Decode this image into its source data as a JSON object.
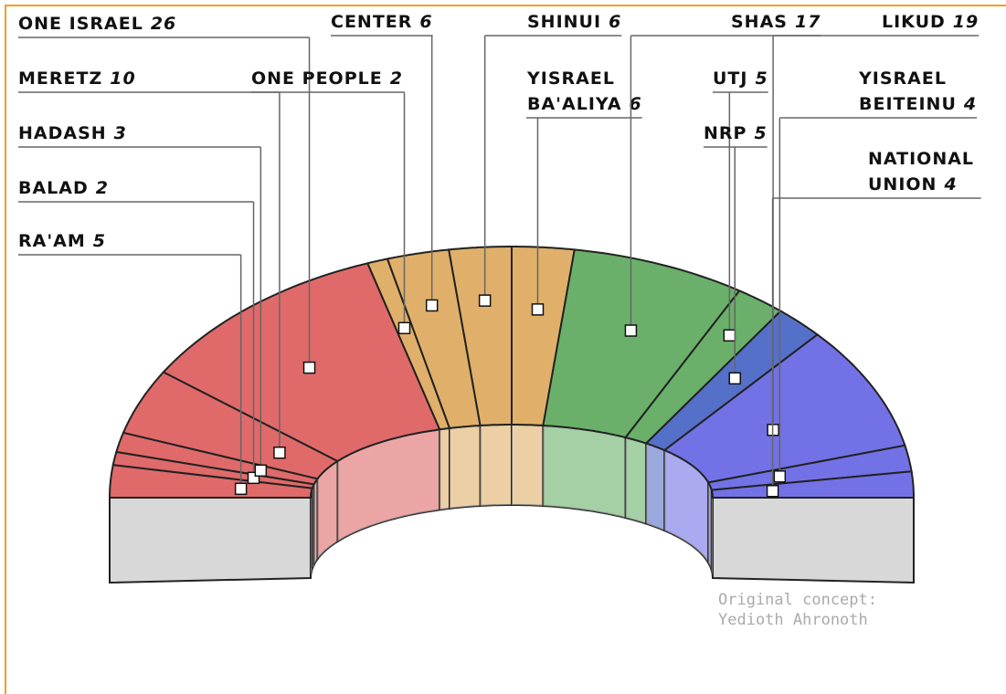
{
  "chart_data": {
    "type": "parliament",
    "categories": [
      "RA'AM",
      "BALAD",
      "HADASH",
      "MERETZ",
      "ONE ISRAEL",
      "ONE PEOPLE",
      "CENTER",
      "SHINUI",
      "YISRAEL BA'ALIYA",
      "SHAS",
      "UTJ",
      "NRP",
      "LIKUD",
      "YISRAEL BEITEINU",
      "NATIONAL UNION"
    ],
    "values": [
      5,
      2,
      3,
      10,
      26,
      2,
      6,
      6,
      6,
      17,
      5,
      5,
      19,
      4,
      4
    ],
    "colors": [
      "#e06a6a",
      "#e06a6a",
      "#e06a6a",
      "#e06a6a",
      "#e06a6a",
      "#e0b06a",
      "#e0b06a",
      "#e0b06a",
      "#e0b06a",
      "#6ab06a",
      "#6ab06a",
      "#5570c8",
      "#7272e6",
      "#7272e6",
      "#7272e6"
    ],
    "annotation": [
      "Original concept:",
      "Yedioth Ahronoth"
    ]
  }
}
